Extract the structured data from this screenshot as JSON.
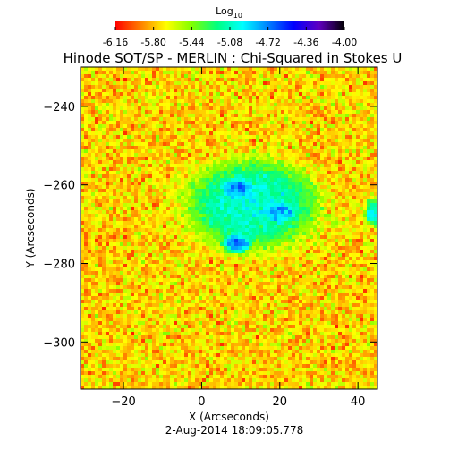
{
  "chart_data": {
    "type": "heatmap",
    "title": "Hinode SOT/SP - MERLIN : Chi-Squared in Stokes U",
    "xlabel": "X (Arcseconds)",
    "ylabel": "Y (Arcseconds)",
    "footer": "2-Aug-2014 18:09:05.778",
    "xlim": [
      -31,
      45
    ],
    "ylim": [
      -312,
      -230
    ],
    "xticks": [
      -20,
      0,
      20,
      40
    ],
    "yticks": [
      -240,
      -260,
      -280,
      -300
    ],
    "colorbar": {
      "title": "Log",
      "title_subscript": "10",
      "min": -6.16,
      "max": -4.0,
      "tick_labels": [
        "-6.16",
        "-5.80",
        "-5.44",
        "-5.08",
        "-4.72",
        "-4.36",
        "-4.00"
      ],
      "colormap": [
        "#ff0000",
        "#ff8000",
        "#ffff00",
        "#80ff00",
        "#00ff80",
        "#00ffff",
        "#0080ff",
        "#0000ff",
        "#6000c0",
        "#000000"
      ]
    },
    "field": {
      "background_log_value": -5.75,
      "regions": [
        {
          "name": "main-low-chi-patch",
          "center": [
            13,
            -265
          ],
          "radius": [
            15,
            10
          ],
          "log_value": -5.05
        },
        {
          "name": "core-blue-1",
          "center": [
            9,
            -261
          ],
          "radius": [
            3,
            2
          ],
          "log_value": -4.72
        },
        {
          "name": "core-blue-2",
          "center": [
            9,
            -275
          ],
          "radius": [
            3,
            2
          ],
          "log_value": -4.72
        },
        {
          "name": "core-blue-3",
          "center": [
            20,
            -267
          ],
          "radius": [
            3,
            2
          ],
          "log_value": -4.8
        },
        {
          "name": "right-edge-patch",
          "center": [
            44,
            -267
          ],
          "radius": [
            2,
            3
          ],
          "log_value": -5.0
        }
      ]
    }
  }
}
